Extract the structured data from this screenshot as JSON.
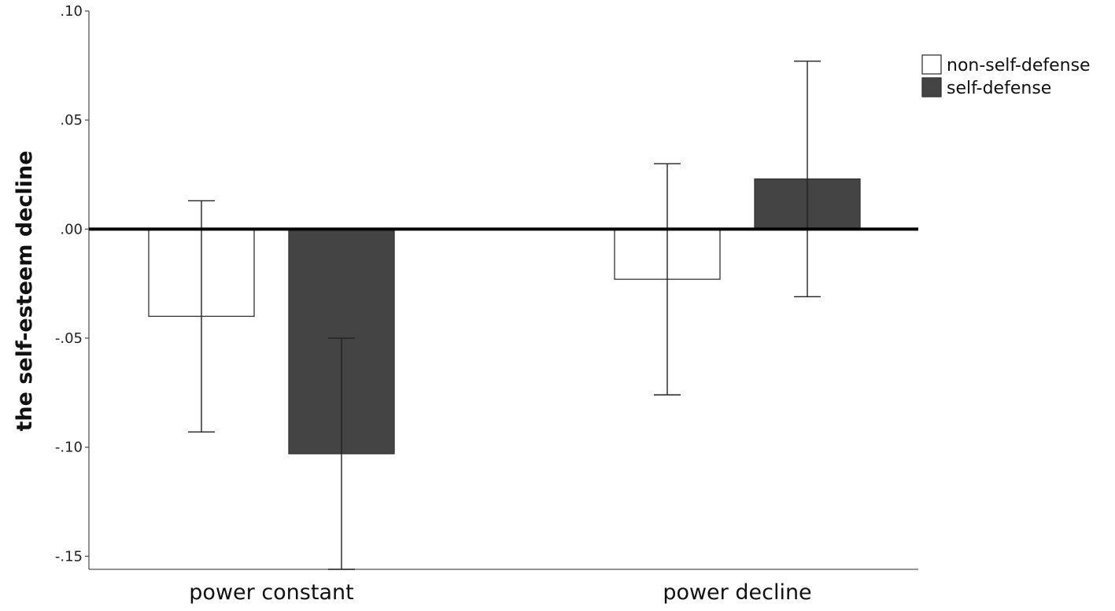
{
  "chart_data": {
    "type": "bar",
    "title": "",
    "xlabel": "",
    "ylabel": "the self-esteem decline",
    "categories": [
      "power constant",
      "power decline"
    ],
    "series": [
      {
        "name": "non-self-defense",
        "color": "#ffffff",
        "values": [
          -0.04,
          -0.023
        ],
        "err_low": [
          -0.093,
          -0.076
        ],
        "err_high": [
          0.013,
          0.03
        ]
      },
      {
        "name": "self-defense",
        "color": "#444444",
        "values": [
          -0.103,
          0.023
        ],
        "err_low": [
          -0.156,
          -0.031
        ],
        "err_high": [
          -0.05,
          0.077
        ]
      }
    ],
    "ylim": [
      -0.156,
      0.1
    ],
    "yticks": [
      0.1,
      0.05,
      0.0,
      -0.05,
      -0.1,
      -0.15
    ],
    "ytick_labels": [
      ".10",
      ".05",
      ".00",
      "-.05",
      "-.10",
      "-.15"
    ],
    "baseline": 0.0,
    "grid": false,
    "legend_position": "top-right"
  }
}
